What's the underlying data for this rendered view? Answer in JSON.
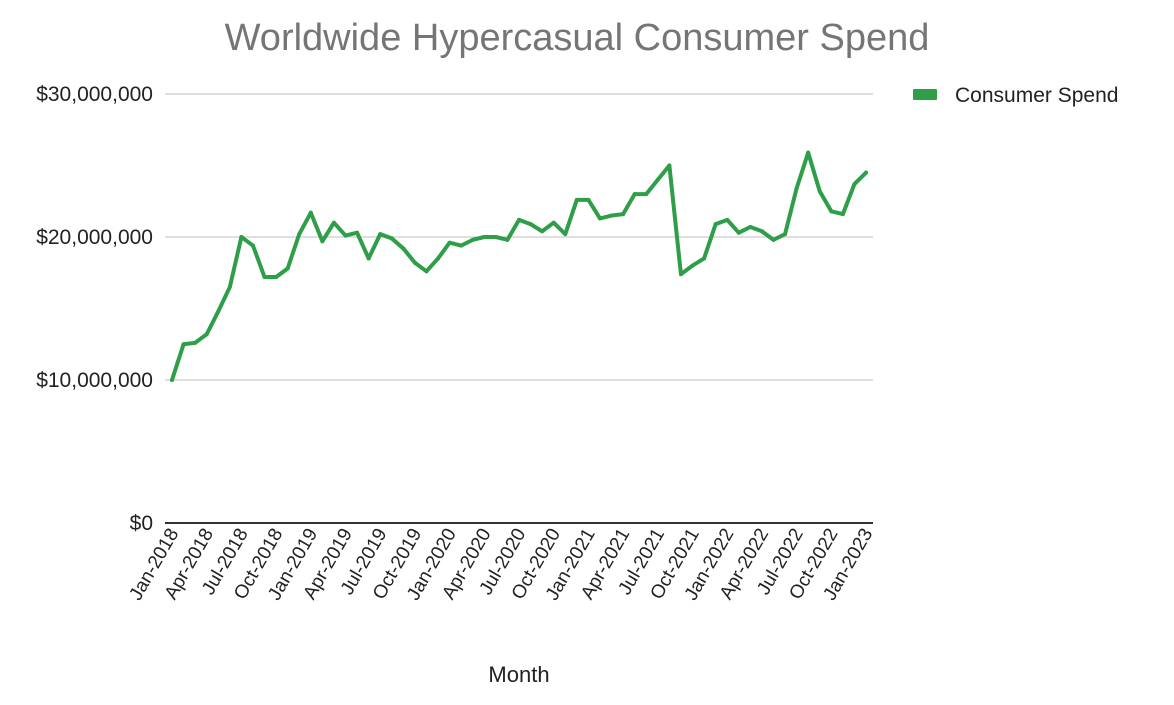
{
  "chart_data": {
    "type": "line",
    "title": "Worldwide Hypercasual Consumer Spend",
    "xlabel": "Month",
    "ylabel": "",
    "ylim": [
      0,
      30000000
    ],
    "y_ticks": [
      0,
      10000000,
      20000000,
      30000000
    ],
    "y_tick_labels": [
      "$0",
      "$10,000,000",
      "$20,000,000",
      "$30,000,000"
    ],
    "grid": true,
    "legend_position": "top-right",
    "x_tick_labels": [
      "Jan-2018",
      "Apr-2018",
      "Jul-2018",
      "Oct-2018",
      "Jan-2019",
      "Apr-2019",
      "Jul-2019",
      "Oct-2019",
      "Jan-2020",
      "Apr-2020",
      "Jul-2020",
      "Oct-2020",
      "Jan-2021",
      "Apr-2021",
      "Jul-2021",
      "Oct-2021",
      "Jan-2022",
      "Apr-2022",
      "Jul-2022",
      "Oct-2022",
      "Jan-2023"
    ],
    "x": [
      "Jan-2018",
      "Feb-2018",
      "Mar-2018",
      "Apr-2018",
      "May-2018",
      "Jun-2018",
      "Jul-2018",
      "Aug-2018",
      "Sep-2018",
      "Oct-2018",
      "Nov-2018",
      "Dec-2018",
      "Jan-2019",
      "Feb-2019",
      "Mar-2019",
      "Apr-2019",
      "May-2019",
      "Jun-2019",
      "Jul-2019",
      "Aug-2019",
      "Sep-2019",
      "Oct-2019",
      "Nov-2019",
      "Dec-2019",
      "Jan-2020",
      "Feb-2020",
      "Mar-2020",
      "Apr-2020",
      "May-2020",
      "Jun-2020",
      "Jul-2020",
      "Aug-2020",
      "Sep-2020",
      "Oct-2020",
      "Nov-2020",
      "Dec-2020",
      "Jan-2021",
      "Feb-2021",
      "Mar-2021",
      "Apr-2021",
      "May-2021",
      "Jun-2021",
      "Jul-2021",
      "Aug-2021",
      "Sep-2021",
      "Oct-2021",
      "Nov-2021",
      "Dec-2021",
      "Jan-2022",
      "Feb-2022",
      "Mar-2022",
      "Apr-2022",
      "May-2022",
      "Jun-2022",
      "Jul-2022",
      "Aug-2022",
      "Sep-2022",
      "Oct-2022",
      "Nov-2022",
      "Dec-2022",
      "Jan-2023"
    ],
    "series": [
      {
        "name": "Consumer Spend",
        "color": "#2e9e48",
        "values": [
          10000000,
          12500000,
          12600000,
          13200000,
          14800000,
          16500000,
          20000000,
          19400000,
          17200000,
          17200000,
          17800000,
          20200000,
          21700000,
          19700000,
          21000000,
          20100000,
          20300000,
          18500000,
          20200000,
          19900000,
          19200000,
          18200000,
          17600000,
          18500000,
          19600000,
          19400000,
          19800000,
          20000000,
          20000000,
          19800000,
          21200000,
          20900000,
          20400000,
          21000000,
          20200000,
          22600000,
          22600000,
          21300000,
          21500000,
          21600000,
          23000000,
          23000000,
          24000000,
          25000000,
          17400000,
          18000000,
          18500000,
          20900000,
          21200000,
          20300000,
          20700000,
          20400000,
          19800000,
          20200000,
          23400000,
          25900000,
          23200000,
          21800000,
          21600000,
          23700000,
          24500000
        ]
      }
    ]
  }
}
